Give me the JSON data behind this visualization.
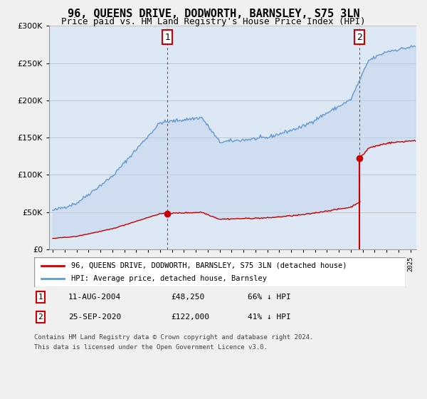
{
  "title": "96, QUEENS DRIVE, DODWORTH, BARNSLEY, S75 3LN",
  "subtitle": "Price paid vs. HM Land Registry's House Price Index (HPI)",
  "legend_property": "96, QUEENS DRIVE, DODWORTH, BARNSLEY, S75 3LN (detached house)",
  "legend_hpi": "HPI: Average price, detached house, Barnsley",
  "sale1_date": "11-AUG-2004",
  "sale1_price": "£48,250",
  "sale1_hpi": "66% ↓ HPI",
  "sale1_year": 2004.62,
  "sale1_value": 48250,
  "sale2_date": "25-SEP-2020",
  "sale2_price": "£122,000",
  "sale2_hpi": "41% ↓ HPI",
  "sale2_year": 2020.75,
  "sale2_value": 122000,
  "footnote1": "Contains HM Land Registry data © Crown copyright and database right 2024.",
  "footnote2": "This data is licensed under the Open Government Licence v3.0.",
  "ylim": [
    0,
    300000
  ],
  "xlim": [
    1994.7,
    2025.5
  ],
  "background_color": "#f0f0f0",
  "plot_background": "#dde8f5",
  "red_color": "#cc0000",
  "blue_color": "#6699cc",
  "fill_color": "#c5d8ee",
  "grid_color": "#bbbbbb",
  "title_fontsize": 11,
  "subtitle_fontsize": 9
}
